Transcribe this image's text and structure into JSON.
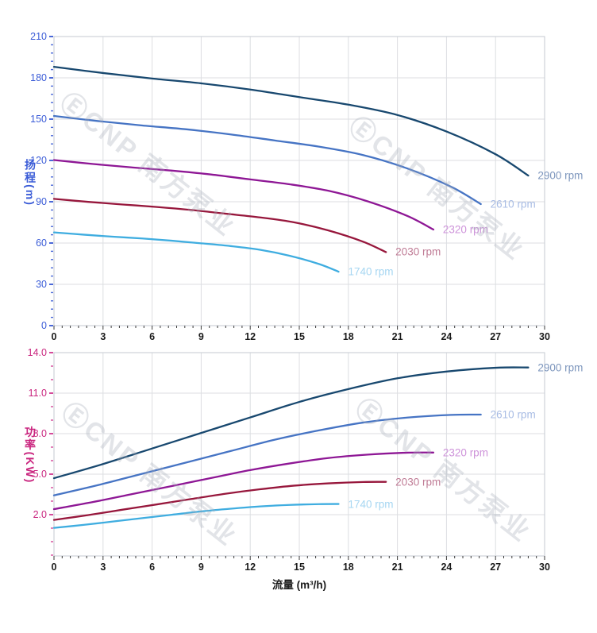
{
  "watermark": {
    "text": "ⒺCNP 南方泵业"
  },
  "style": {
    "grid_color": "#dcdee2",
    "border_color": "#c5cad2",
    "x_tick_color": "#3a3a3a",
    "head_axis_color": "#3b5cd7",
    "power_axis_color": "#c9247e"
  },
  "chart_data": [
    {
      "type": "line",
      "title": "",
      "y_axis_title": "扬程(m)",
      "x_axis_title": "",
      "xlim": [
        0,
        30
      ],
      "ylim": [
        0,
        210
      ],
      "grid": true,
      "x_ticks": [
        {
          "v": 0,
          "label": "0"
        },
        {
          "v": 3,
          "label": "3"
        },
        {
          "v": 6,
          "label": "6"
        },
        {
          "v": 9,
          "label": "9"
        },
        {
          "v": 12,
          "label": "12"
        },
        {
          "v": 15,
          "label": "15"
        },
        {
          "v": 18,
          "label": "18"
        },
        {
          "v": 21,
          "label": "21"
        },
        {
          "v": 24,
          "label": "24"
        },
        {
          "v": 27,
          "label": "27"
        },
        {
          "v": 30,
          "label": "30"
        }
      ],
      "y_ticks": [
        {
          "v": 0,
          "label": "0"
        },
        {
          "v": 30,
          "label": "30"
        },
        {
          "v": 60,
          "label": "60"
        },
        {
          "v": 90,
          "label": "90"
        },
        {
          "v": 120,
          "label": "120"
        },
        {
          "v": 150,
          "label": "150"
        },
        {
          "v": 180,
          "label": "180"
        },
        {
          "v": 210,
          "label": "210"
        }
      ],
      "x_minor": {
        "start": 0,
        "step": 0.5
      },
      "y_minor": {
        "start": 0,
        "step": 6
      },
      "y_label_color": "#3b5cd7",
      "y_tick_color": "#4a68d8",
      "series": [
        {
          "label": "2900 rpm",
          "rpm": 2900,
          "color": "#18486f",
          "label_color": "#7d96bd",
          "points": [
            [
              0,
              188
            ],
            [
              3,
              183.5
            ],
            [
              6,
              179.5
            ],
            [
              9,
              176
            ],
            [
              12,
              171.5
            ],
            [
              15,
              166
            ],
            [
              18,
              160.5
            ],
            [
              21,
              153
            ],
            [
              24,
              141
            ],
            [
              27,
              124.5
            ],
            [
              29,
              109
            ]
          ]
        },
        {
          "label": "2610 rpm",
          "rpm": 2610,
          "color": "#4674c4",
          "label_color": "#a8bce4",
          "points": [
            [
              0,
              152.3
            ],
            [
              2.7,
              148.6
            ],
            [
              5.4,
              145.4
            ],
            [
              8.1,
              142.6
            ],
            [
              10.8,
              138.9
            ],
            [
              13.5,
              134.5
            ],
            [
              16.2,
              130
            ],
            [
              18.9,
              123.9
            ],
            [
              21.6,
              114.2
            ],
            [
              24.3,
              100.8
            ],
            [
              26.1,
              88.3
            ]
          ]
        },
        {
          "label": "2320 rpm",
          "rpm": 2320,
          "color": "#8e1795",
          "label_color": "#ce93da",
          "points": [
            [
              0,
              120.3
            ],
            [
              2.4,
              117.4
            ],
            [
              4.8,
              114.9
            ],
            [
              7.2,
              112.6
            ],
            [
              9.6,
              109.8
            ],
            [
              12,
              106.2
            ],
            [
              14.4,
              102.7
            ],
            [
              16.8,
              97.9
            ],
            [
              19.2,
              90.2
            ],
            [
              21.6,
              79.7
            ],
            [
              23.2,
              69.8
            ]
          ]
        },
        {
          "label": "2030 rpm",
          "rpm": 2030,
          "color": "#97173c",
          "label_color": "#bf7b95",
          "points": [
            [
              0,
              92.1
            ],
            [
              2.1,
              89.9
            ],
            [
              4.2,
              88
            ],
            [
              6.3,
              86.2
            ],
            [
              8.4,
              84
            ],
            [
              10.5,
              81.3
            ],
            [
              12.6,
              78.6
            ],
            [
              14.7,
              75
            ],
            [
              16.8,
              69.1
            ],
            [
              18.9,
              61
            ],
            [
              20.3,
              53.4
            ]
          ]
        },
        {
          "label": "1740 rpm",
          "rpm": 1740,
          "color": "#3fade0",
          "label_color": "#a6d6f2",
          "points": [
            [
              0,
              67.7
            ],
            [
              1.8,
              66.1
            ],
            [
              3.6,
              64.6
            ],
            [
              5.4,
              63.3
            ],
            [
              7.2,
              61.7
            ],
            [
              9,
              59.8
            ],
            [
              10.8,
              57.8
            ],
            [
              12.6,
              55.1
            ],
            [
              14.4,
              50.8
            ],
            [
              16.2,
              44.8
            ],
            [
              17.4,
              39.2
            ]
          ]
        }
      ]
    },
    {
      "type": "line",
      "title": "",
      "y_axis_title": "功率(KW)",
      "x_axis_title": "流量 (m³/h)",
      "xlim": [
        0,
        30
      ],
      "ylim": [
        -1.06,
        14
      ],
      "grid": true,
      "x_ticks": [
        {
          "v": 0,
          "label": "0"
        },
        {
          "v": 3,
          "label": "3"
        },
        {
          "v": 6,
          "label": "6"
        },
        {
          "v": 9,
          "label": "9"
        },
        {
          "v": 12,
          "label": "12"
        },
        {
          "v": 15,
          "label": "15"
        },
        {
          "v": 18,
          "label": "18"
        },
        {
          "v": 21,
          "label": "21"
        },
        {
          "v": 24,
          "label": "24"
        },
        {
          "v": 27,
          "label": "27"
        },
        {
          "v": 30,
          "label": "30"
        }
      ],
      "y_ticks": [
        {
          "v": 2,
          "label": "2.0"
        },
        {
          "v": 5,
          "label": "5.0"
        },
        {
          "v": 8,
          "label": "8.0"
        },
        {
          "v": 11,
          "label": "11.0"
        },
        {
          "v": 14,
          "label": "14.0"
        }
      ],
      "x_minor": {
        "start": 0,
        "step": 0.5
      },
      "y_minor": {
        "start": -1,
        "step": 1
      },
      "y_label_color": "#c9247e",
      "y_tick_color": "#d44a9a",
      "series": [
        {
          "label": "2900 rpm",
          "rpm": 2900,
          "color": "#18486f",
          "label_color": "#7d96bd",
          "points": [
            [
              0,
              4.7
            ],
            [
              3,
              5.75
            ],
            [
              6,
              6.9
            ],
            [
              9,
              8.05
            ],
            [
              12,
              9.2
            ],
            [
              15,
              10.35
            ],
            [
              18,
              11.3
            ],
            [
              21,
              12.1
            ],
            [
              24,
              12.6
            ],
            [
              27,
              12.88
            ],
            [
              29,
              12.9
            ]
          ]
        },
        {
          "label": "2610 rpm",
          "rpm": 2610,
          "color": "#4674c4",
          "label_color": "#a8bce4",
          "points": [
            [
              0,
              3.43
            ],
            [
              2.7,
              4.19
            ],
            [
              5.4,
              5.03
            ],
            [
              8.1,
              5.87
            ],
            [
              10.8,
              6.71
            ],
            [
              13.5,
              7.55
            ],
            [
              16.2,
              8.24
            ],
            [
              18.9,
              8.82
            ],
            [
              21.6,
              9.19
            ],
            [
              24.3,
              9.39
            ],
            [
              26.1,
              9.41
            ]
          ]
        },
        {
          "label": "2320 rpm",
          "rpm": 2320,
          "color": "#8e1795",
          "label_color": "#ce93da",
          "points": [
            [
              0,
              2.41
            ],
            [
              2.4,
              2.94
            ],
            [
              4.8,
              3.53
            ],
            [
              7.2,
              4.12
            ],
            [
              9.6,
              4.71
            ],
            [
              12,
              5.3
            ],
            [
              14.4,
              5.79
            ],
            [
              16.8,
              6.2
            ],
            [
              19.2,
              6.45
            ],
            [
              21.6,
              6.59
            ],
            [
              23.2,
              6.6
            ]
          ]
        },
        {
          "label": "2030 rpm",
          "rpm": 2030,
          "color": "#97173c",
          "label_color": "#bf7b95",
          "points": [
            [
              0,
              1.61
            ],
            [
              2.1,
              1.97
            ],
            [
              4.2,
              2.37
            ],
            [
              6.3,
              2.76
            ],
            [
              8.4,
              3.16
            ],
            [
              10.5,
              3.55
            ],
            [
              12.6,
              3.88
            ],
            [
              14.7,
              4.15
            ],
            [
              16.8,
              4.32
            ],
            [
              18.9,
              4.42
            ],
            [
              20.3,
              4.43
            ]
          ]
        },
        {
          "label": "1740 rpm",
          "rpm": 1740,
          "color": "#3fade0",
          "label_color": "#a6d6f2",
          "points": [
            [
              0,
              1.02
            ],
            [
              1.8,
              1.24
            ],
            [
              3.6,
              1.49
            ],
            [
              5.4,
              1.74
            ],
            [
              7.2,
              1.99
            ],
            [
              9,
              2.24
            ],
            [
              10.8,
              2.44
            ],
            [
              12.6,
              2.61
            ],
            [
              14.4,
              2.72
            ],
            [
              16.2,
              2.78
            ],
            [
              17.4,
              2.79
            ]
          ]
        }
      ]
    }
  ]
}
